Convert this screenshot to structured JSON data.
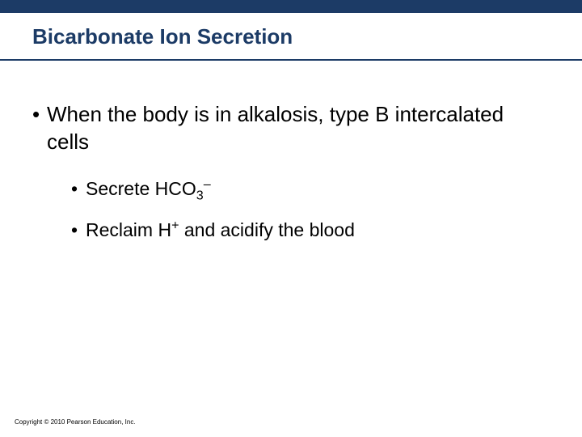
{
  "colors": {
    "band": "#1c3b66",
    "title": "#1c3b66",
    "body_text": "#000000",
    "background": "#ffffff"
  },
  "typography": {
    "title_fontsize_pt": 20,
    "level1_fontsize_pt": 20,
    "level2_fontsize_pt": 17,
    "font_family": "Arial"
  },
  "title": "Bicarbonate Ion Secretion",
  "bullets": {
    "level1": {
      "mark": "•",
      "text": "When the body is in alkalosis, type B intercalated cells"
    },
    "level2a": {
      "mark": "•",
      "prefix": "Secrete HCO",
      "sub": "3",
      "sup": "–",
      "suffix": ""
    },
    "level2b": {
      "mark": "•",
      "prefix": "Reclaim H",
      "sup": "+",
      "suffix": " and acidify the blood"
    }
  },
  "copyright": "Copyright © 2010 Pearson Education, Inc."
}
